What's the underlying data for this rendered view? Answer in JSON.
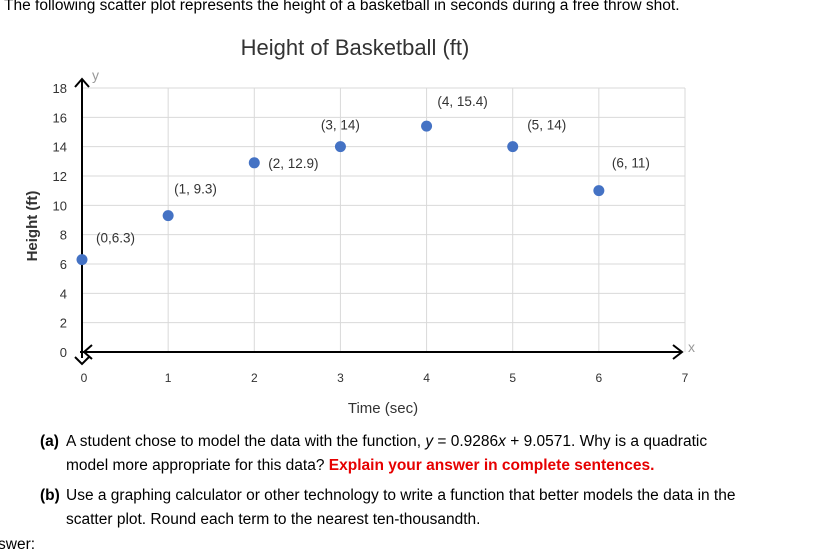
{
  "intro": "The following scatter plot represents the height of a basketball in seconds during a free throw shot.",
  "chart_data": {
    "type": "scatter",
    "title": "Height of Basketball (ft)",
    "xlabel": "Time (sec)",
    "ylabel": "Height (ft)",
    "x_axis_letter": "x",
    "y_axis_letter": "y",
    "xlim": [
      0,
      7
    ],
    "ylim": [
      0,
      18
    ],
    "xticks": [
      "0",
      "1",
      "2",
      "3",
      "4",
      "5",
      "6",
      "7"
    ],
    "yticks": [
      "0",
      "2",
      "4",
      "6",
      "8",
      "10",
      "12",
      "14",
      "16",
      "18"
    ],
    "grid": true,
    "point_color": "#4472c4",
    "points": [
      {
        "x": 0,
        "y": 6.3,
        "label": "(0,6.3)"
      },
      {
        "x": 1,
        "y": 9.3,
        "label": "(1, 9.3)"
      },
      {
        "x": 2,
        "y": 12.9,
        "label": "(2, 12.9)"
      },
      {
        "x": 3,
        "y": 14,
        "label": "(3, 14)"
      },
      {
        "x": 4,
        "y": 15.4,
        "label": "(4, 15.4)"
      },
      {
        "x": 5,
        "y": 14,
        "label": "(5, 14)"
      },
      {
        "x": 6,
        "y": 11,
        "label": "(6, 11)"
      }
    ]
  },
  "questions": {
    "a": {
      "tag": "(a)",
      "text_before": "A student chose to model the data with the function, ",
      "formula_y": "y",
      "formula_mid": " = 0.9286",
      "formula_x": "x",
      "formula_end": " + 9.0571. Why is a quadratic",
      "line2": "model more appropriate for this data? ",
      "emphasis": "Explain your answer in complete sentences."
    },
    "b": {
      "tag": "(b)",
      "line1": "Use a graphing calculator or other technology to write a function that better models the data in the",
      "line2": "scatter plot. Round each term to the nearest ten-thousandth."
    }
  },
  "answer_label": "swer:"
}
